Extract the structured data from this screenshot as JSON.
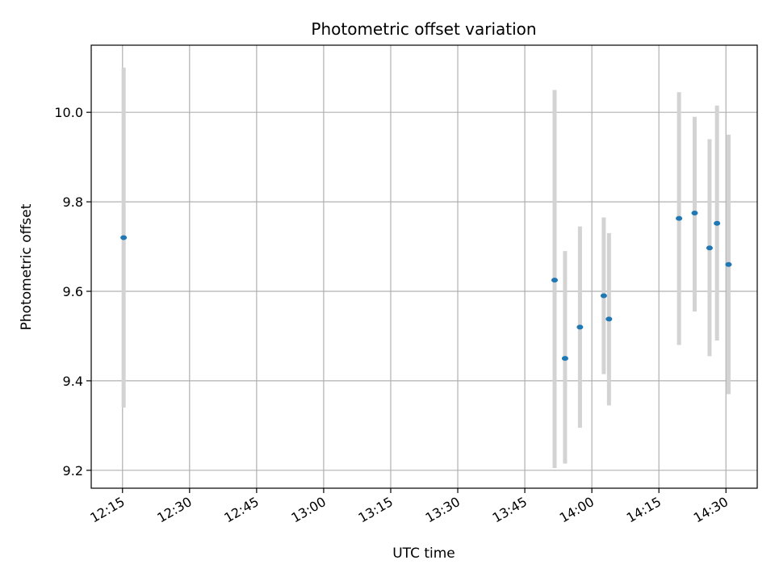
{
  "chart_data": {
    "type": "scatter",
    "title": "Photometric offset variation",
    "xlabel": "UTC time",
    "ylabel": "Photometric offset",
    "x_axis_kind": "time",
    "xlim": [
      "12:08",
      "14:37"
    ],
    "ylim": [
      9.16,
      10.15
    ],
    "x_ticks": [
      "12:15",
      "12:30",
      "12:45",
      "13:00",
      "13:15",
      "13:30",
      "13:45",
      "14:00",
      "14:15",
      "14:30"
    ],
    "y_ticks": [
      9.2,
      9.4,
      9.6,
      9.8,
      10.0
    ],
    "y_tick_labels": [
      "9.2",
      "9.4",
      "9.6",
      "9.8",
      "10.0"
    ],
    "grid": true,
    "colors": {
      "point": "#1f77b4",
      "errorbar": "#d3d3d3",
      "grid": "#b0b0b0"
    },
    "series": [
      {
        "points": [
          {
            "x": "12:15:15",
            "y": 9.72,
            "ylow": 9.34,
            "yhigh": 10.1
          },
          {
            "x": "13:51:40",
            "y": 9.625,
            "ylow": 9.205,
            "yhigh": 10.05
          },
          {
            "x": "13:54:00",
            "y": 9.45,
            "ylow": 9.215,
            "yhigh": 9.69
          },
          {
            "x": "13:57:20",
            "y": 9.52,
            "ylow": 9.295,
            "yhigh": 9.745
          },
          {
            "x": "14:02:40",
            "y": 9.59,
            "ylow": 9.415,
            "yhigh": 9.765
          },
          {
            "x": "14:03:50",
            "y": 9.538,
            "ylow": 9.345,
            "yhigh": 9.73
          },
          {
            "x": "14:19:30",
            "y": 9.763,
            "ylow": 9.48,
            "yhigh": 10.045
          },
          {
            "x": "14:23:00",
            "y": 9.775,
            "ylow": 9.555,
            "yhigh": 9.99
          },
          {
            "x": "14:26:20",
            "y": 9.697,
            "ylow": 9.455,
            "yhigh": 9.94
          },
          {
            "x": "14:28:00",
            "y": 9.752,
            "ylow": 9.49,
            "yhigh": 10.015
          },
          {
            "x": "14:30:35",
            "y": 9.66,
            "ylow": 9.37,
            "yhigh": 9.95
          }
        ]
      }
    ]
  }
}
